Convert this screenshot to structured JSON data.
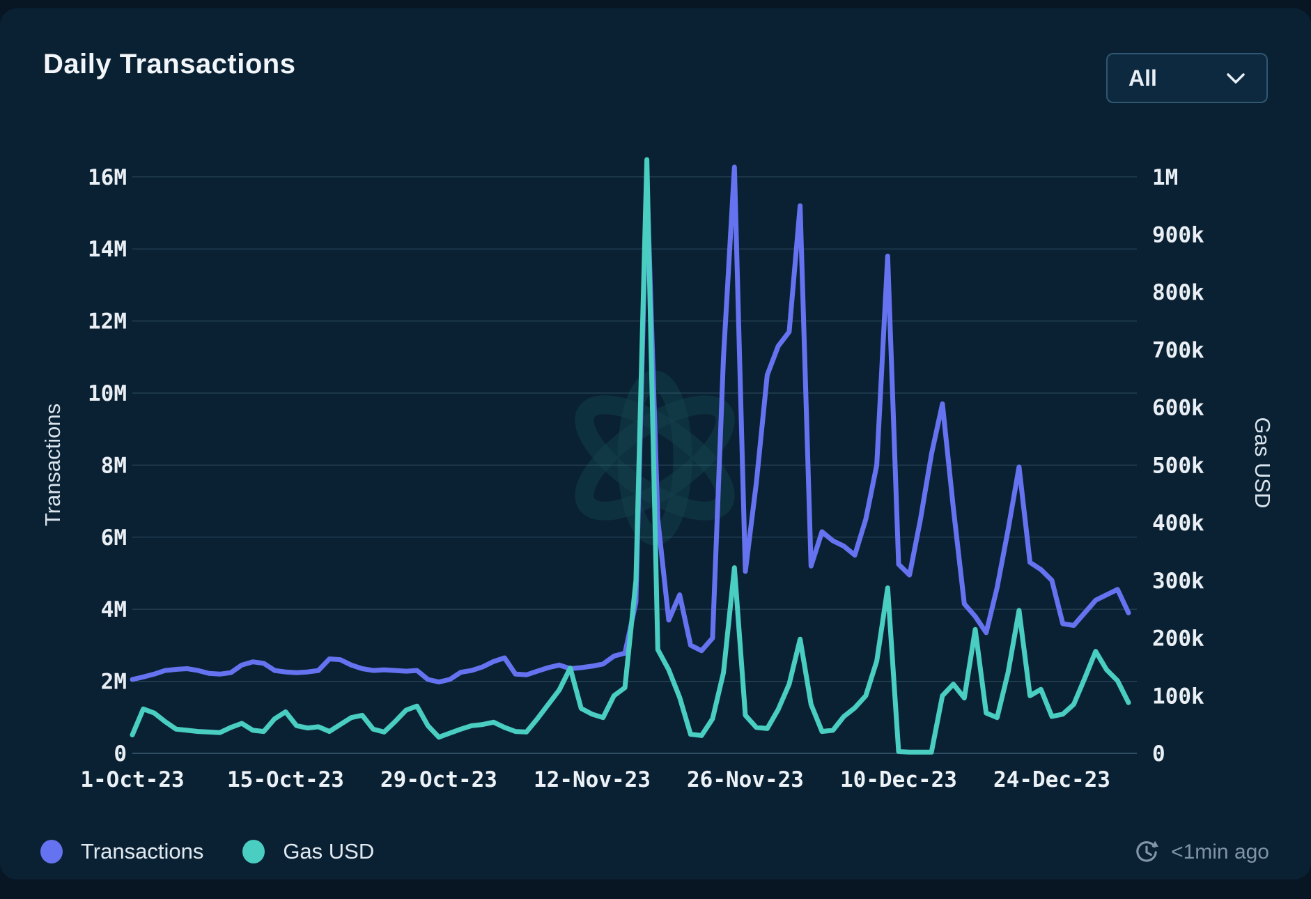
{
  "header": {
    "title": "Daily Transactions",
    "range_selector": {
      "value": "All"
    }
  },
  "footer": {
    "legend": [
      {
        "label": "Transactions",
        "color": "#6673F0"
      },
      {
        "label": "Gas USD",
        "color": "#49CEC1"
      }
    ],
    "updated": "<1min ago"
  },
  "chart_data": {
    "type": "line",
    "title": "Daily Transactions",
    "grid": "horizontal-only",
    "legend_position": "bottom-left",
    "x_start_date": "2023-10-01",
    "x_end_date": "2023-12-31",
    "x_interval": "daily",
    "x_tick_labels": [
      "1-Oct-23",
      "15-Oct-23",
      "29-Oct-23",
      "12-Nov-23",
      "26-Nov-23",
      "10-Dec-23",
      "24-Dec-23"
    ],
    "x_tick_days": [
      0,
      14,
      28,
      42,
      56,
      70,
      84
    ],
    "left_axis": {
      "label": "Transactions",
      "min": 0,
      "max": 16000000,
      "ticks": [
        "0",
        "2M",
        "4M",
        "6M",
        "8M",
        "10M",
        "12M",
        "14M",
        "16M"
      ]
    },
    "right_axis": {
      "label": "Gas USD",
      "min": 0,
      "max": 1000000,
      "ticks": [
        "0",
        "100k",
        "200k",
        "300k",
        "400k",
        "500k",
        "600k",
        "700k",
        "800k",
        "900k",
        "1M"
      ]
    },
    "series": [
      {
        "name": "Transactions",
        "axis": "left",
        "color": "#6673F0",
        "unit": "millions",
        "values": [
          2.05,
          2.12,
          2.2,
          2.3,
          2.33,
          2.35,
          2.3,
          2.22,
          2.2,
          2.24,
          2.45,
          2.54,
          2.5,
          2.3,
          2.26,
          2.24,
          2.26,
          2.3,
          2.62,
          2.6,
          2.45,
          2.35,
          2.3,
          2.32,
          2.3,
          2.28,
          2.3,
          2.05,
          1.98,
          2.05,
          2.25,
          2.3,
          2.4,
          2.55,
          2.65,
          2.2,
          2.18,
          2.28,
          2.38,
          2.45,
          2.35,
          2.38,
          2.42,
          2.48,
          2.7,
          2.78,
          4.2,
          16.0,
          6.5,
          3.7,
          4.4,
          3.0,
          2.85,
          3.2,
          11.0,
          16.27,
          5.05,
          7.5,
          10.5,
          11.3,
          11.7,
          15.2,
          5.2,
          6.15,
          5.9,
          5.75,
          5.5,
          6.5,
          8.0,
          13.8,
          5.25,
          4.95,
          6.5,
          8.3,
          9.7,
          6.8,
          4.15,
          3.8,
          3.35,
          4.6,
          6.2,
          7.95,
          5.3,
          5.1,
          4.8,
          3.6,
          3.55,
          3.9,
          4.25,
          4.4,
          4.55,
          3.9
        ]
      },
      {
        "name": "Gas USD",
        "axis": "right",
        "color": "#49CEC1",
        "unit": "thousands_usd",
        "values": [
          32,
          77,
          70,
          55,
          42,
          40,
          38,
          37,
          36,
          45,
          52,
          40,
          38,
          60,
          72,
          48,
          44,
          46,
          38,
          50,
          62,
          66,
          42,
          37,
          55,
          75,
          82,
          48,
          28,
          35,
          42,
          48,
          50,
          54,
          45,
          38,
          37,
          60,
          85,
          110,
          148,
          78,
          68,
          62,
          100,
          114,
          300,
          1030,
          180,
          145,
          97,
          33,
          31,
          60,
          140,
          322,
          66,
          45,
          43,
          76,
          120,
          198,
          85,
          38,
          40,
          64,
          79,
          100,
          160,
          287,
          3,
          2,
          2,
          2,
          100,
          120,
          96,
          215,
          70,
          62,
          140,
          248,
          100,
          111,
          64,
          68,
          85,
          130,
          177,
          145,
          126,
          88
        ]
      }
    ]
  }
}
